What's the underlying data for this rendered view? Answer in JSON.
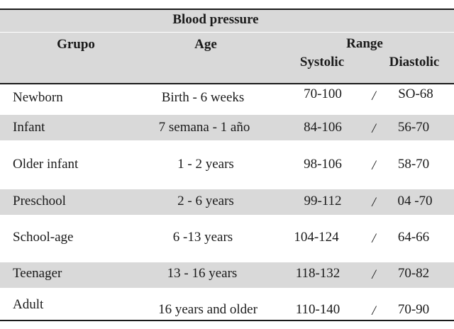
{
  "table": {
    "caption": "Blood pressure",
    "headers": {
      "group": "Grupo",
      "age": "Age",
      "range": "Range",
      "systolic": "Systolic",
      "diastolic": "Diastolic"
    },
    "separator": "/",
    "rows": [
      {
        "group": "Newborn",
        "age": "Birth - 6 weeks",
        "systolic": "70-100",
        "diastolic": "SO-68"
      },
      {
        "group": "Infant",
        "age": "7 semana - 1 año",
        "systolic": "84-106",
        "diastolic": "56-70"
      },
      {
        "group": "Older infant",
        "age": "1 - 2 years",
        "systolic": "98-106",
        "diastolic": "58-70"
      },
      {
        "group": "Preschool",
        "age": "2 - 6 years",
        "systolic": "99-112",
        "diastolic": "04 -70"
      },
      {
        "group": "School-age",
        "age": "6 -13 years",
        "systolic": "104-124",
        "diastolic": "64-66"
      },
      {
        "group": "Teenager",
        "age": "13 - 16 years",
        "systolic": "118-132",
        "diastolic": "70-82"
      },
      {
        "group": "Adult",
        "age": "16 years and older",
        "systolic": "110-140",
        "diastolic": "70-90"
      }
    ]
  }
}
